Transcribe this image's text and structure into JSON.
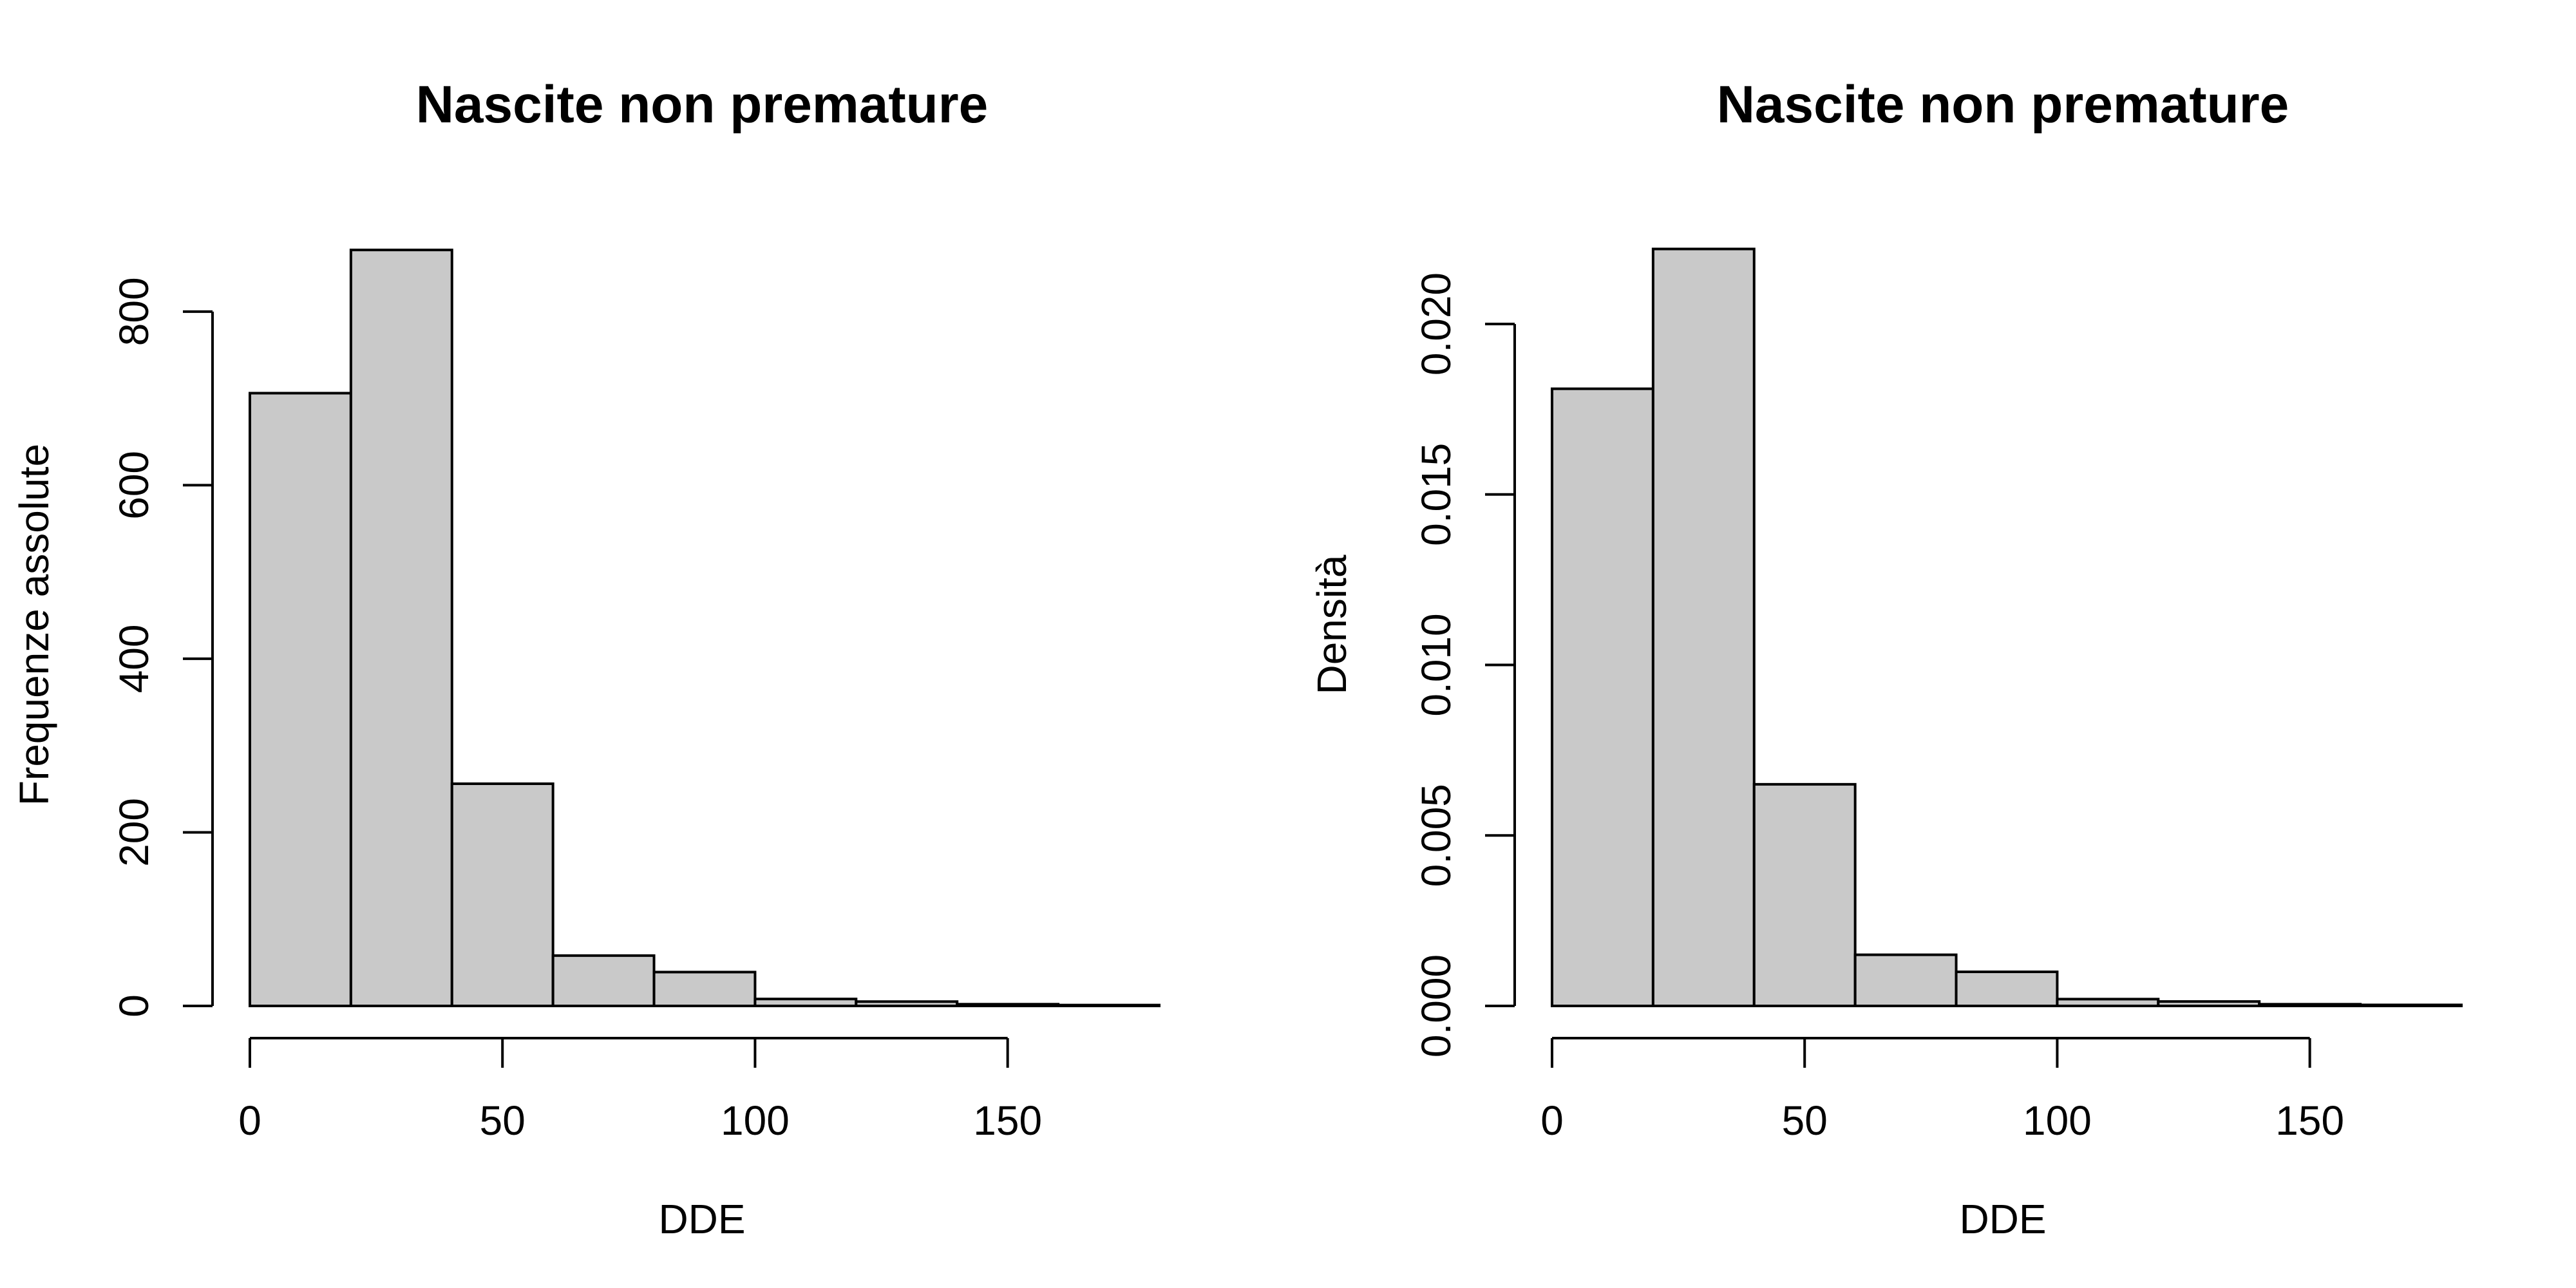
{
  "chart_data": [
    {
      "type": "bar",
      "title": "Nascite non premature",
      "xlabel": "DDE",
      "ylabel": "Frequenze assolute",
      "bins": [
        [
          0,
          20
        ],
        [
          20,
          40
        ],
        [
          40,
          60
        ],
        [
          60,
          80
        ],
        [
          80,
          100
        ],
        [
          100,
          120
        ],
        [
          120,
          140
        ],
        [
          140,
          160
        ],
        [
          160,
          180
        ]
      ],
      "values": [
        706,
        871,
        256,
        58,
        39,
        8,
        5,
        2,
        1
      ],
      "xlim": [
        0,
        180
      ],
      "ylim": [
        0,
        880
      ],
      "xticks": [
        0,
        50,
        100,
        150
      ],
      "xtick_labels": [
        "0",
        "50",
        "100",
        "150"
      ],
      "yticks": [
        0,
        200,
        400,
        600,
        800
      ],
      "ytick_labels": [
        "0",
        "200",
        "400",
        "600",
        "800"
      ]
    },
    {
      "type": "bar",
      "title": "Nascite non premature",
      "xlabel": "DDE",
      "ylabel": "Densità",
      "bins": [
        [
          0,
          20
        ],
        [
          20,
          40
        ],
        [
          40,
          60
        ],
        [
          60,
          80
        ],
        [
          80,
          100
        ],
        [
          100,
          120
        ],
        [
          120,
          140
        ],
        [
          140,
          160
        ],
        [
          160,
          180
        ]
      ],
      "values": [
        0.0181,
        0.0222,
        0.0065,
        0.0015,
        0.001,
        0.0002,
        0.00013,
        5e-05,
        3e-05
      ],
      "xlim": [
        0,
        180
      ],
      "ylim": [
        0,
        0.0224
      ],
      "xticks": [
        0,
        50,
        100,
        150
      ],
      "xtick_labels": [
        "0",
        "50",
        "100",
        "150"
      ],
      "yticks": [
        0,
        0.005,
        0.01,
        0.015,
        0.02
      ],
      "ytick_labels": [
        "0.000",
        "0.005",
        "0.010",
        "0.015",
        "0.020"
      ]
    }
  ]
}
